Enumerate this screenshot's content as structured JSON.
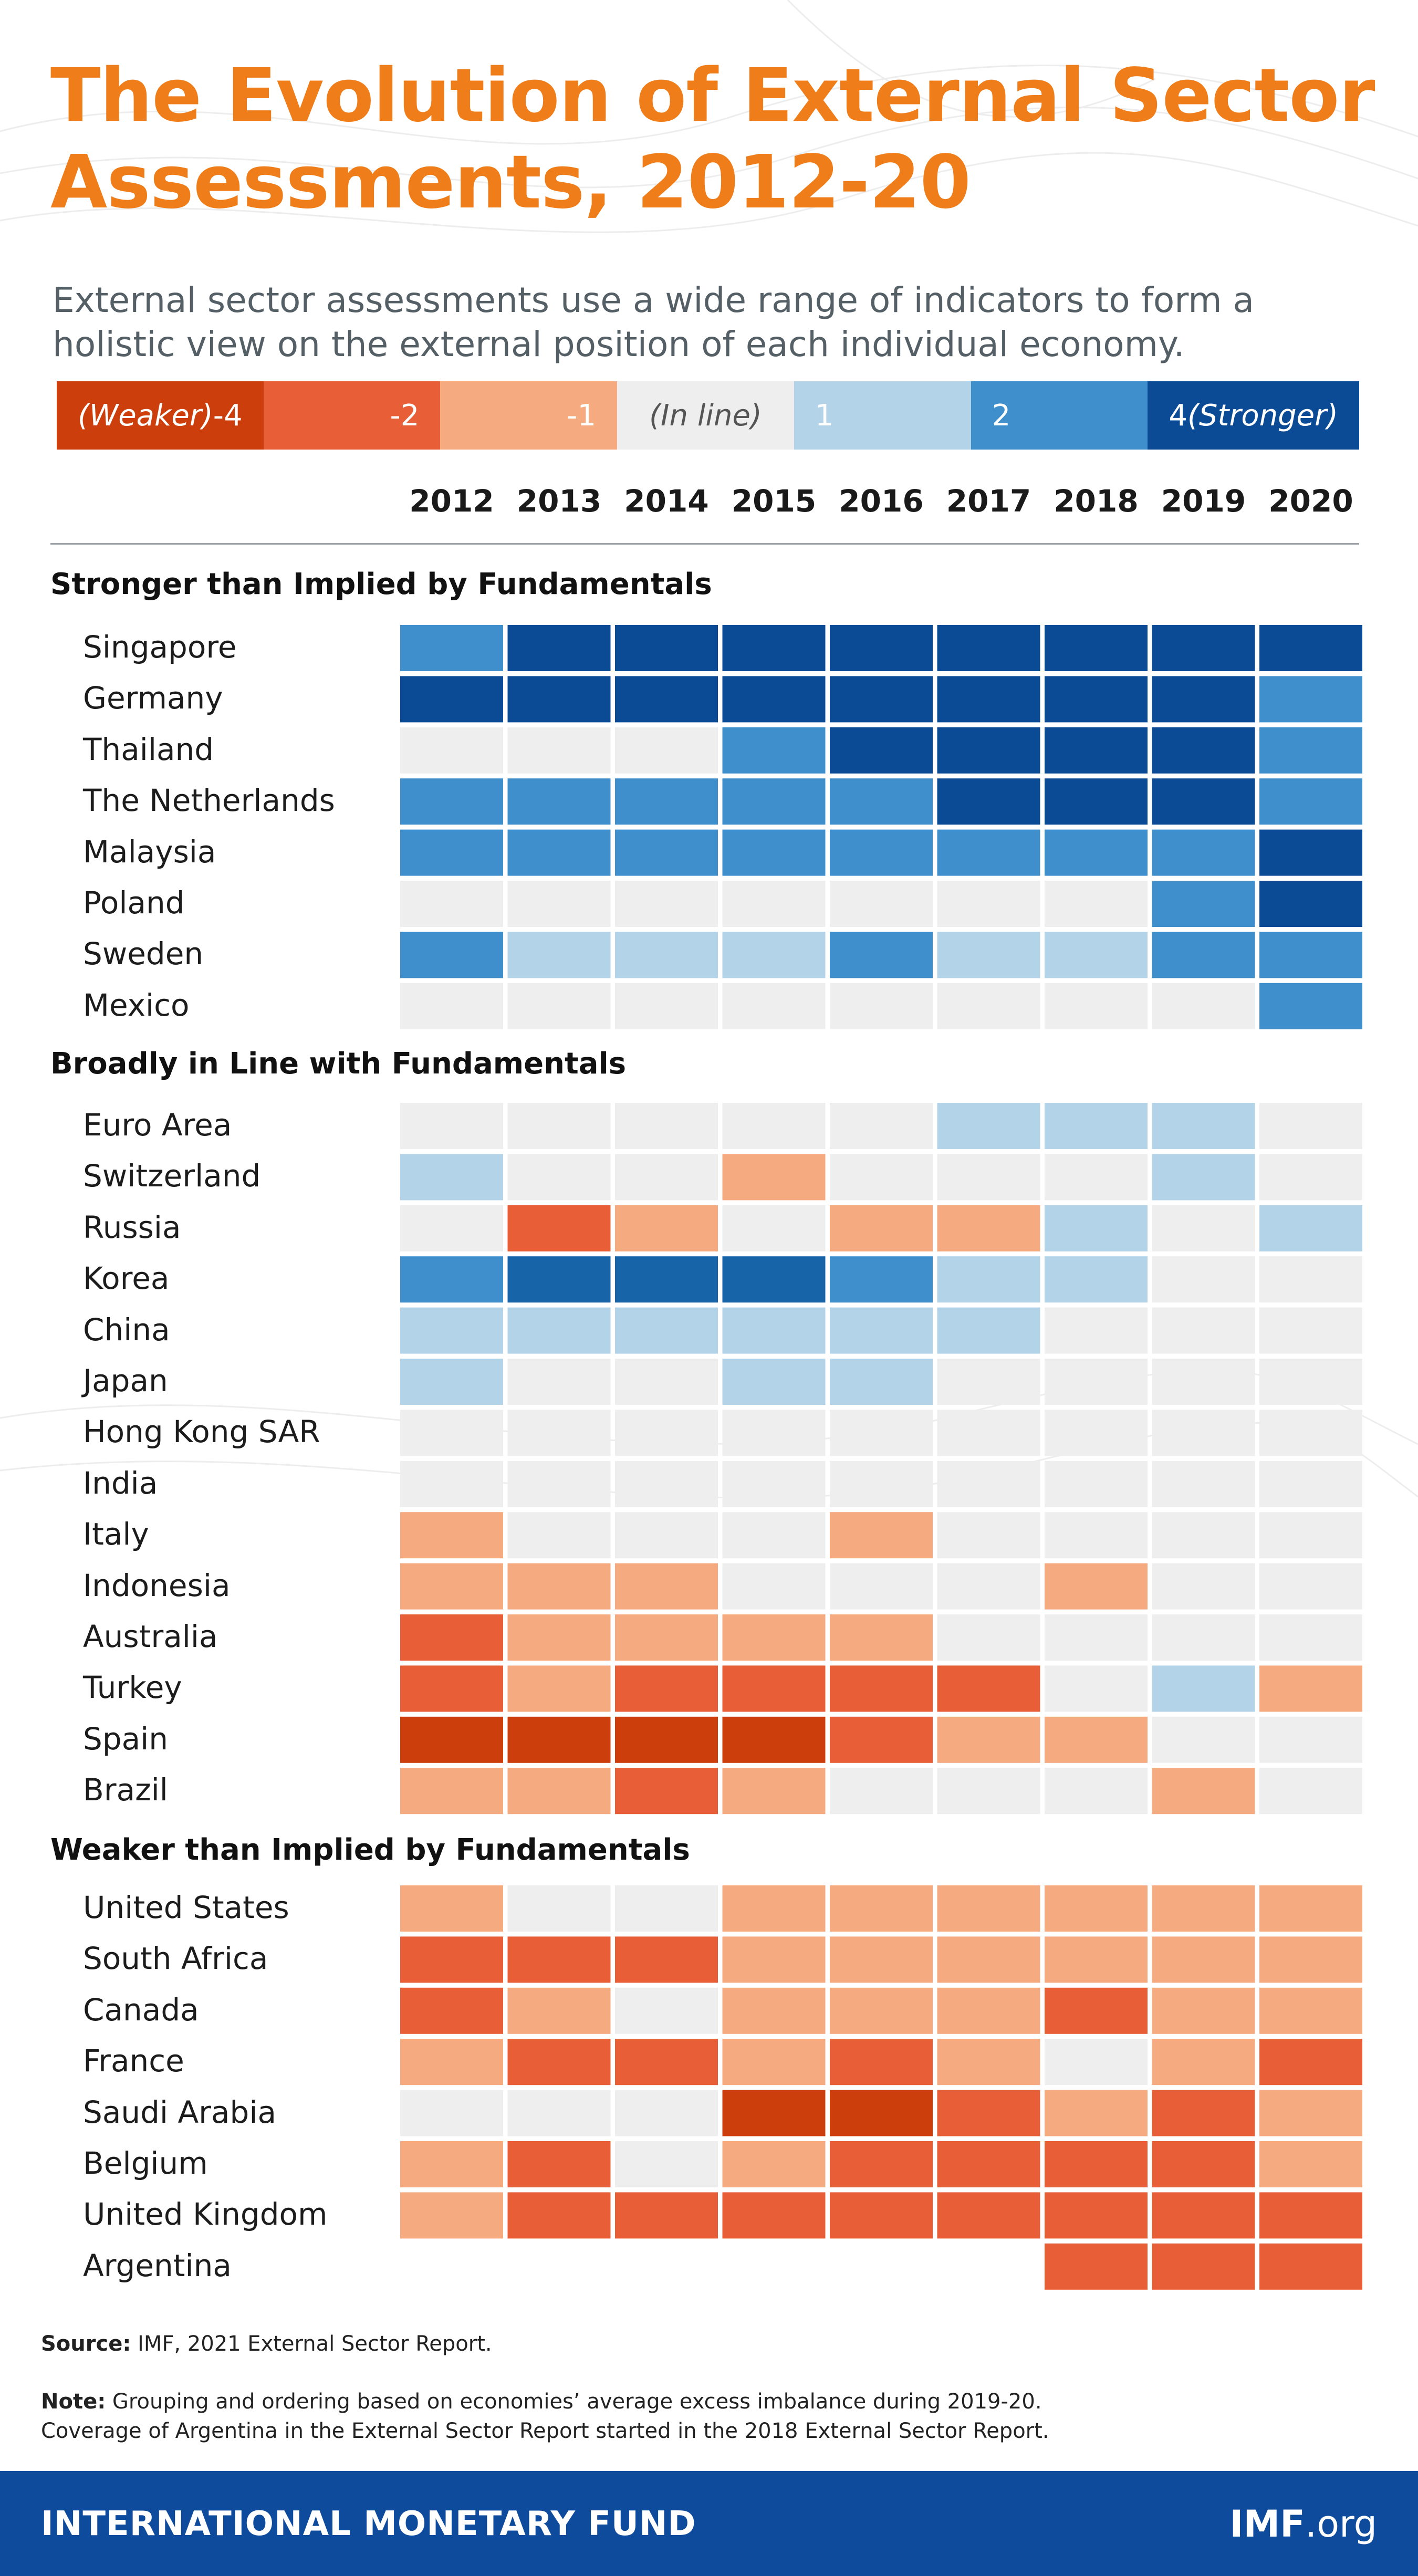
{
  "title": "The Evolution of External Sector Assessments, 2012-20",
  "subtitle": "External sector assessments use a wide range of indicators to form a holistic view on the external position of each individual economy.",
  "colors": {
    "-4": "#cc3f0c",
    "-2": "#e85e36",
    "-1": "#f5aa80",
    "0": "#efeeee",
    "1": "#b2d3e8",
    "2": "#3f8fcd",
    "4": "#0b4b96",
    "korea_dark": "#1864a8"
  },
  "legend": [
    {
      "value": "-4",
      "label_left": "(Weaker)",
      "num": "-4",
      "color": "#cc3f0c",
      "text_color": "#ffffff"
    },
    {
      "value": "-2",
      "label_left": "",
      "num": "-2",
      "color": "#e85e36",
      "text_color": "#ffffff"
    },
    {
      "value": "-1",
      "label_left": "",
      "num": "-1",
      "color": "#f5aa80",
      "text_color": "#ffffff"
    },
    {
      "value": "0",
      "label_left": "(In line)",
      "num": "",
      "color": "#efeeee",
      "text_color": "#555555"
    },
    {
      "value": "1",
      "label_left": "",
      "num": "1",
      "color": "#b2d3e8",
      "text_color": "#ffffff"
    },
    {
      "value": "2",
      "label_left": "",
      "num": "2",
      "color": "#3f8fcd",
      "text_color": "#ffffff"
    },
    {
      "value": "4",
      "label_left": "(Stronger)",
      "num": "4",
      "color": "#0b4b96",
      "text_color": "#ffffff"
    }
  ],
  "chart_data": {
    "type": "heatmap",
    "x": [
      "2012",
      "2013",
      "2014",
      "2015",
      "2016",
      "2017",
      "2018",
      "2019",
      "2020"
    ],
    "groups": [
      {
        "title": "Stronger than Implied by Fundamentals",
        "rows": [
          {
            "name": "Singapore",
            "values": [
              2,
              4,
              4,
              4,
              4,
              4,
              4,
              4,
              4
            ]
          },
          {
            "name": "Germany",
            "values": [
              4,
              4,
              4,
              4,
              4,
              4,
              4,
              4,
              2
            ]
          },
          {
            "name": "Thailand",
            "values": [
              0,
              0,
              0,
              2,
              4,
              4,
              4,
              4,
              2
            ]
          },
          {
            "name": "The Netherlands",
            "values": [
              2,
              2,
              2,
              2,
              2,
              4,
              4,
              4,
              2
            ]
          },
          {
            "name": "Malaysia",
            "values": [
              2,
              2,
              2,
              2,
              2,
              2,
              2,
              2,
              4
            ]
          },
          {
            "name": "Poland",
            "values": [
              0,
              0,
              0,
              0,
              0,
              0,
              0,
              2,
              4
            ]
          },
          {
            "name": "Sweden",
            "values": [
              2,
              1,
              1,
              1,
              2,
              1,
              1,
              2,
              2
            ]
          },
          {
            "name": "Mexico",
            "values": [
              0,
              0,
              0,
              0,
              0,
              0,
              0,
              0,
              2
            ]
          }
        ]
      },
      {
        "title": "Broadly in Line with Fundamentals",
        "rows": [
          {
            "name": "Euro Area",
            "values": [
              0,
              0,
              0,
              0,
              0,
              1,
              1,
              1,
              0
            ]
          },
          {
            "name": "Switzerland",
            "values": [
              1,
              0,
              0,
              -1,
              0,
              0,
              0,
              1,
              0
            ]
          },
          {
            "name": "Russia",
            "values": [
              0,
              -2,
              -1,
              0,
              -1,
              -1,
              1,
              0,
              1
            ]
          },
          {
            "name": "Korea",
            "values": [
              2,
              3,
              3,
              3,
              2,
              1,
              1,
              0,
              0
            ]
          },
          {
            "name": "China",
            "values": [
              1,
              1,
              1,
              1,
              1,
              1,
              0,
              0,
              0
            ]
          },
          {
            "name": "Japan",
            "values": [
              1,
              0,
              0,
              1,
              1,
              0,
              0,
              0,
              0
            ]
          },
          {
            "name": "Hong Kong SAR",
            "values": [
              0,
              0,
              0,
              0,
              0,
              0,
              0,
              0,
              0
            ]
          },
          {
            "name": "India",
            "values": [
              0,
              0,
              0,
              0,
              0,
              0,
              0,
              0,
              0
            ]
          },
          {
            "name": "Italy",
            "values": [
              -1,
              0,
              0,
              0,
              -1,
              0,
              0,
              0,
              0
            ]
          },
          {
            "name": "Indonesia",
            "values": [
              -1,
              -1,
              -1,
              0,
              0,
              0,
              -1,
              0,
              0
            ]
          },
          {
            "name": "Australia",
            "values": [
              -2,
              -1,
              -1,
              -1,
              -1,
              0,
              0,
              0,
              0
            ]
          },
          {
            "name": "Turkey",
            "values": [
              -2,
              -1,
              -2,
              -2,
              -2,
              -2,
              0,
              1,
              -1
            ]
          },
          {
            "name": "Spain",
            "values": [
              -4,
              -4,
              -4,
              -4,
              -2,
              -1,
              -1,
              0,
              0
            ]
          },
          {
            "name": "Brazil",
            "values": [
              -1,
              -1,
              -2,
              -1,
              0,
              0,
              0,
              -1,
              0
            ]
          }
        ]
      },
      {
        "title": "Weaker than Implied by Fundamentals",
        "rows": [
          {
            "name": "United States",
            "values": [
              -1,
              0,
              0,
              -1,
              -1,
              -1,
              -1,
              -1,
              -1
            ]
          },
          {
            "name": "South Africa",
            "values": [
              -2,
              -2,
              -2,
              -1,
              -1,
              -1,
              -1,
              -1,
              -1
            ]
          },
          {
            "name": "Canada",
            "values": [
              -2,
              -1,
              0,
              -1,
              -1,
              -1,
              -2,
              -1,
              -1
            ]
          },
          {
            "name": "France",
            "values": [
              -1,
              -2,
              -2,
              -1,
              -2,
              -1,
              0,
              -1,
              -2
            ]
          },
          {
            "name": "Saudi Arabia",
            "values": [
              0,
              0,
              0,
              -4,
              -4,
              -2,
              -1,
              -2,
              -1
            ]
          },
          {
            "name": "Belgium",
            "values": [
              -1,
              -2,
              0,
              -1,
              -2,
              -2,
              -2,
              -2,
              -1
            ]
          },
          {
            "name": "United Kingdom",
            "values": [
              -1,
              -2,
              -2,
              -2,
              -2,
              -2,
              -2,
              -2,
              -2
            ]
          },
          {
            "name": "Argentina",
            "values": [
              null,
              null,
              null,
              null,
              null,
              null,
              -2,
              -2,
              -2
            ]
          }
        ]
      }
    ]
  },
  "source_label": "Source:",
  "source_text": " IMF, 2021 External Sector Report.",
  "note_label": "Note:",
  "note_line1": " Grouping and ordering based on economies’ average excess imbalance during 2019-20.",
  "note_line2": "Coverage of Argentina in the External Sector Report started in the 2018 External Sector Report.",
  "footer_org": "INTERNATIONAL MONETARY FUND",
  "footer_web_bold": "IMF",
  "footer_web_rest": ".org"
}
